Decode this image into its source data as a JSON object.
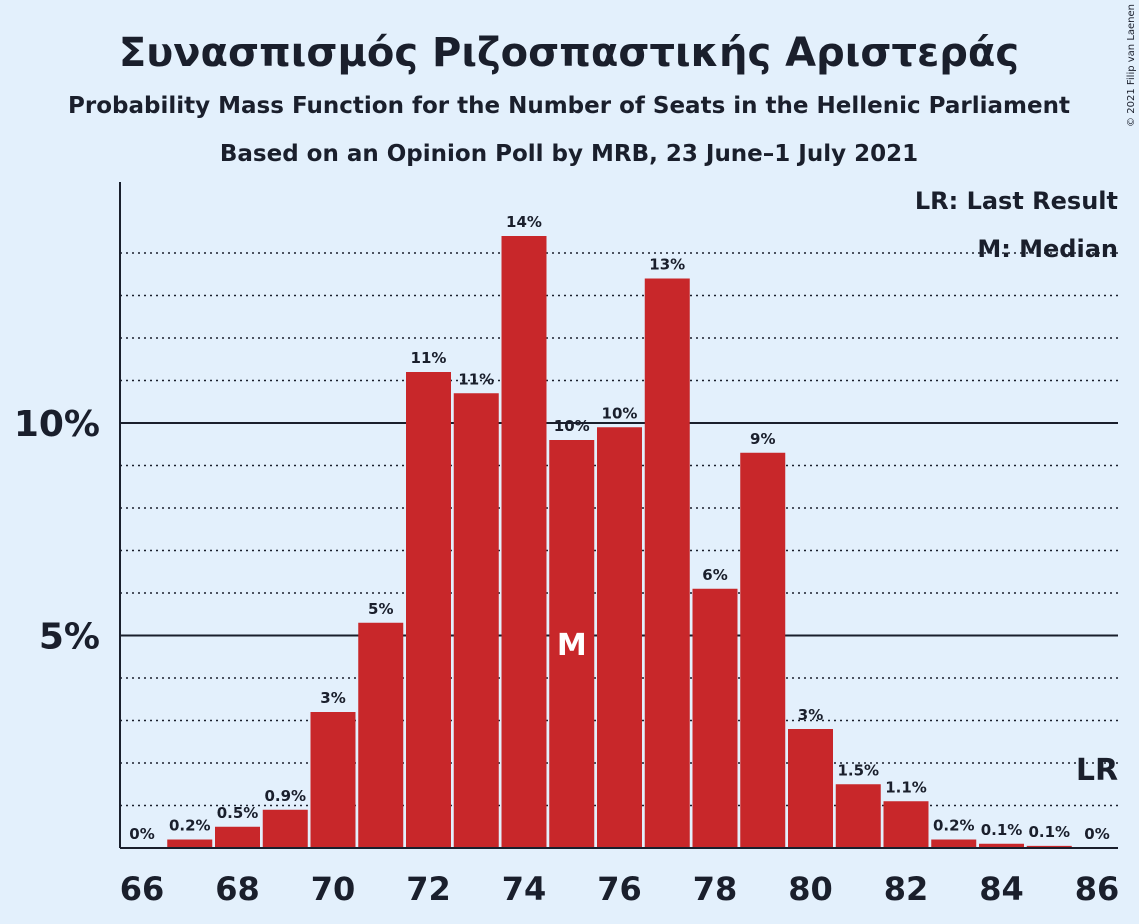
{
  "title": "Συνασπισμός Ριζοσπαστικής Αριστεράς",
  "subtitle1": "Probability Mass Function for the Number of Seats in the Hellenic Parliament",
  "subtitle2": "Based on an Opinion Poll by MRB, 23 June–1 July 2021",
  "copyright": "© 2021 Filip van Laenen",
  "legend": {
    "last_result": "LR: Last Result",
    "median": "M: Median"
  },
  "markers": {
    "median_letter": "M",
    "last_result_letter": "LR"
  },
  "colors": {
    "bar": "#c8272a",
    "background": "#e3f0fc",
    "text": "#1a1f2c"
  },
  "chart_data": {
    "type": "bar",
    "categories": [
      66,
      67,
      68,
      69,
      70,
      71,
      72,
      73,
      74,
      75,
      76,
      77,
      78,
      79,
      80,
      81,
      82,
      83,
      84,
      85,
      86
    ],
    "values": [
      0,
      0.2,
      0.5,
      0.9,
      3.2,
      5.3,
      11.2,
      10.7,
      14.4,
      9.6,
      9.9,
      13.4,
      6.1,
      9.3,
      2.8,
      1.5,
      1.1,
      0.2,
      0.1,
      0.05,
      0
    ],
    "data_labels": [
      "0%",
      "0.2%",
      "0.5%",
      "0.9%",
      "3%",
      "5%",
      "11%",
      "11%",
      "14%",
      "10%",
      "10%",
      "13%",
      "6%",
      "9%",
      "3%",
      "1.5%",
      "1.1%",
      "0.2%",
      "0.1%",
      "0.1%",
      "0%"
    ],
    "x_tick_labels": [
      "66",
      "68",
      "70",
      "72",
      "74",
      "76",
      "78",
      "80",
      "82",
      "84",
      "86"
    ],
    "y_tick_labels": [
      {
        "value": 5,
        "label": "5%"
      },
      {
        "value": 10,
        "label": "10%"
      }
    ],
    "ylim": [
      0,
      15.7
    ],
    "minor_gridlines": [
      1,
      2,
      3,
      4,
      6,
      7,
      8,
      9,
      11,
      12,
      13,
      14
    ],
    "major_gridlines": [
      5,
      10
    ],
    "median_seat": 75,
    "last_result_seat": 86,
    "unit": "%"
  }
}
